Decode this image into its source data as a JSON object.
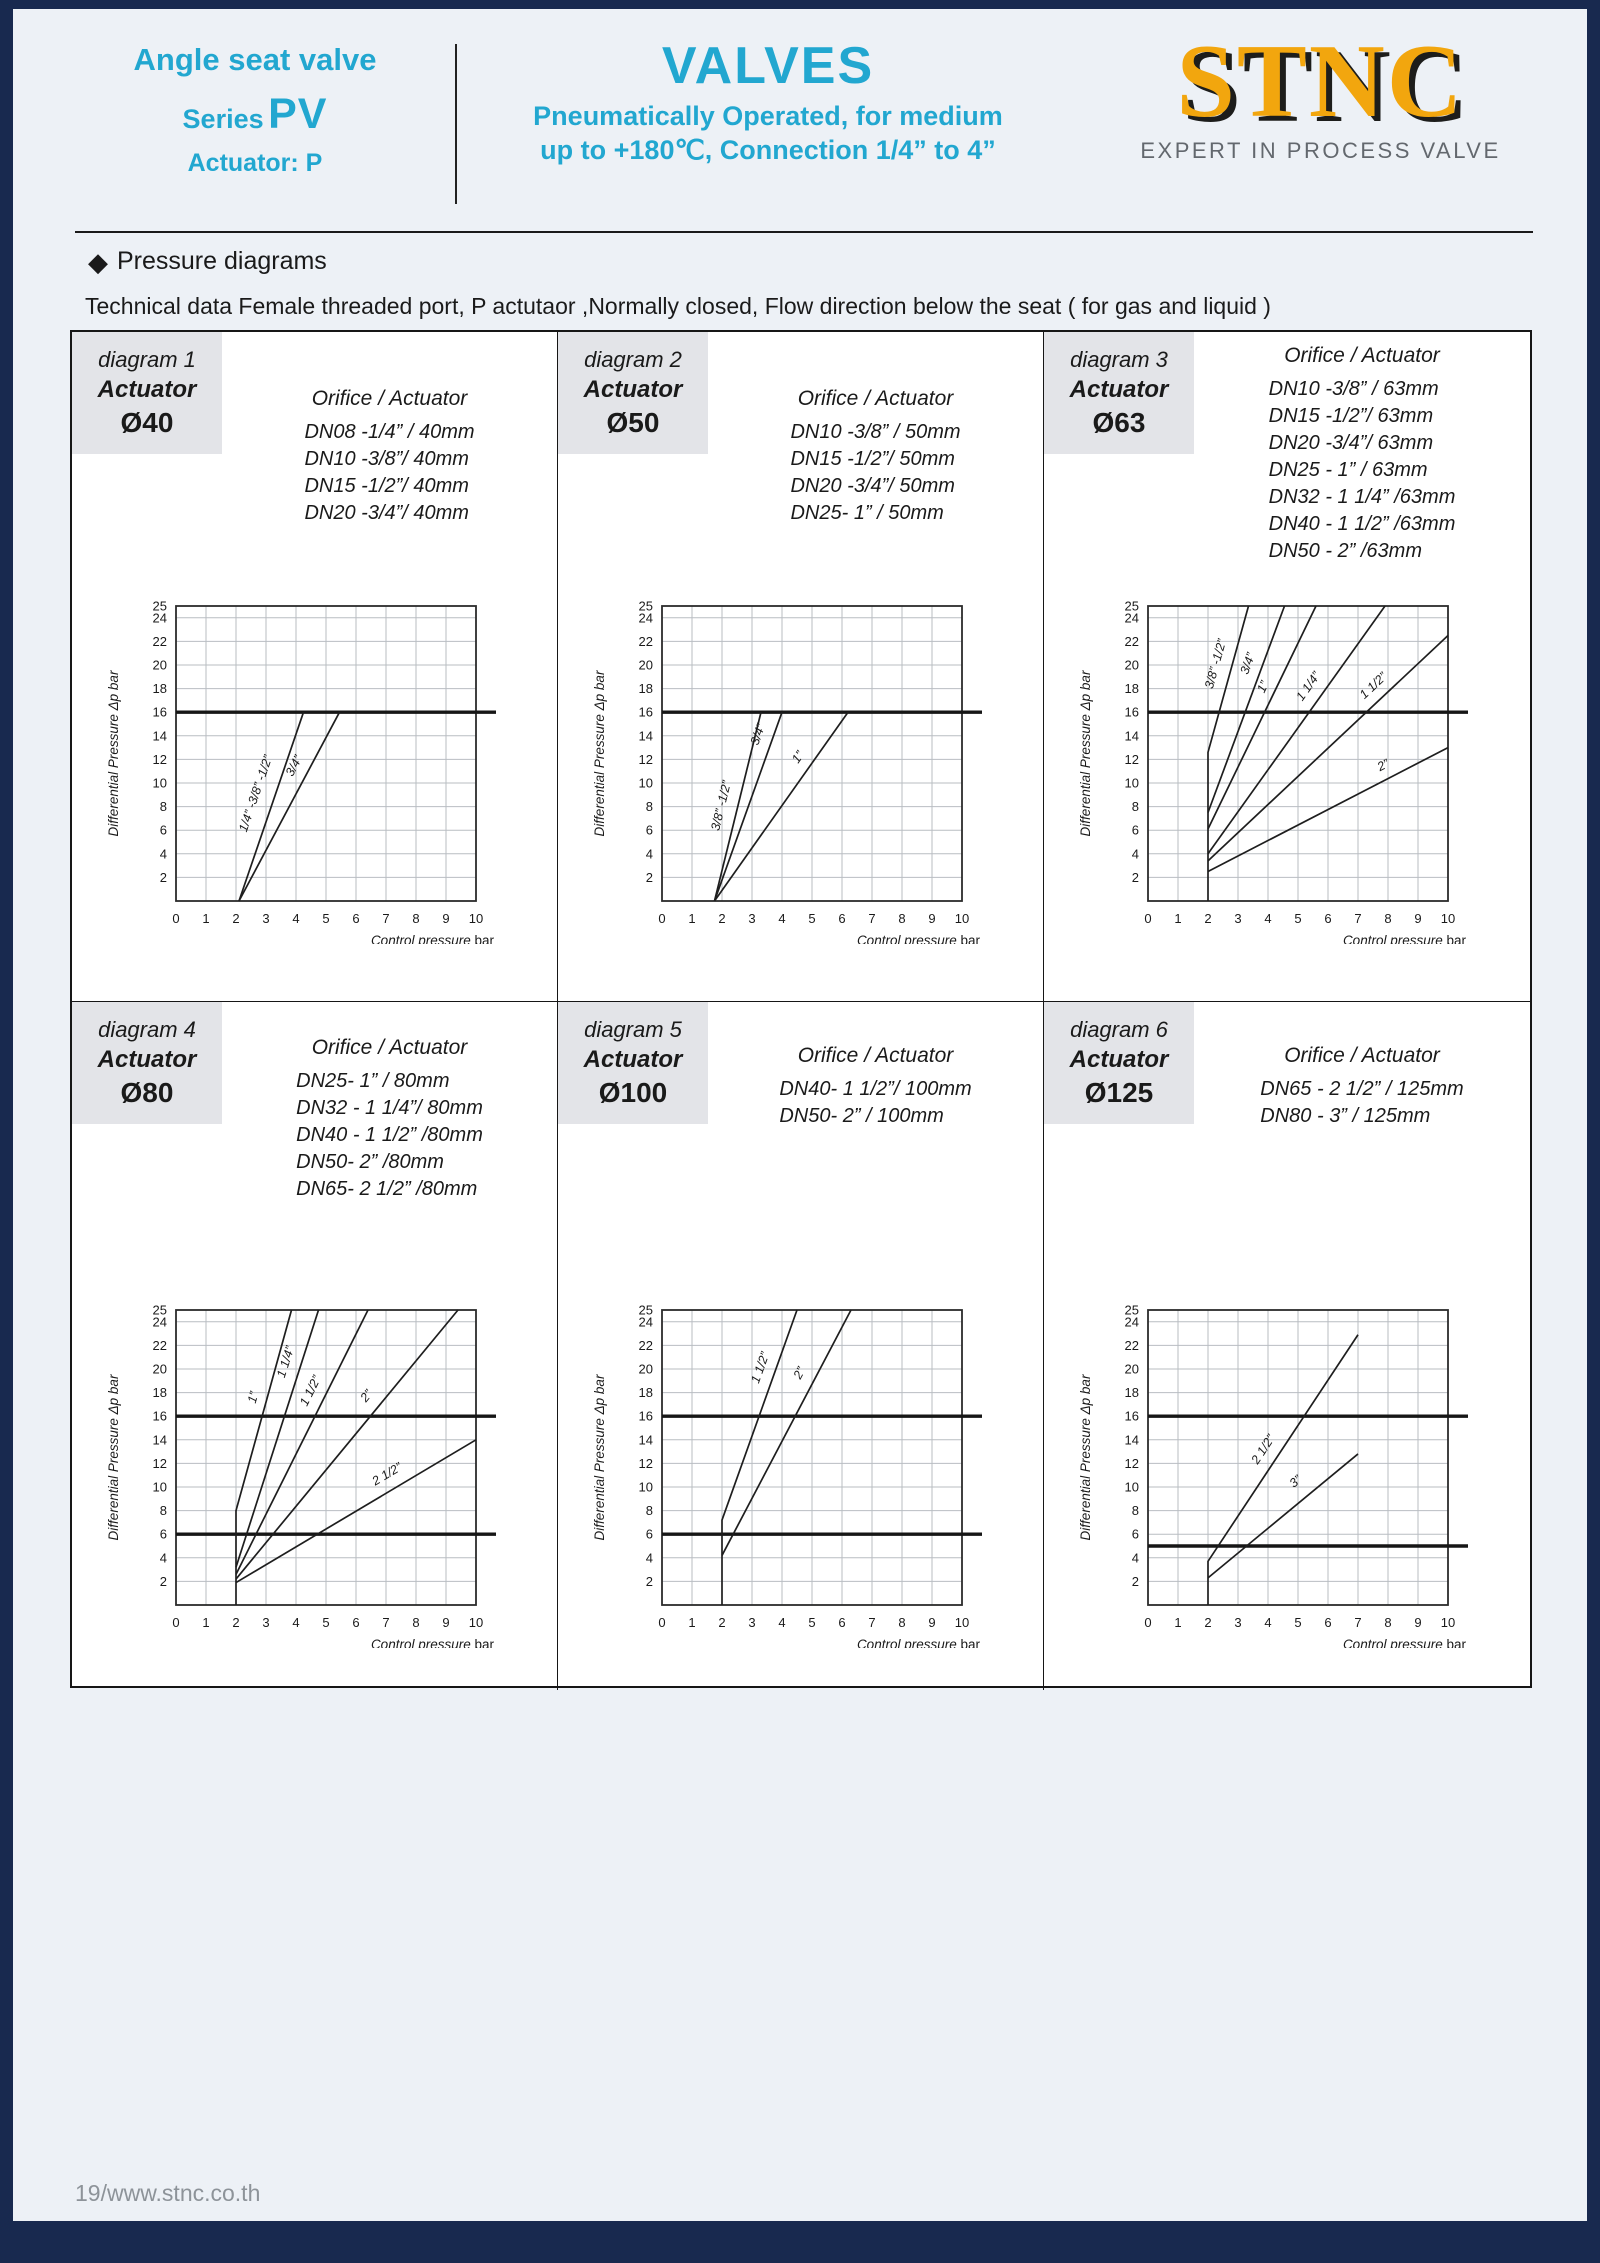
{
  "header": {
    "left": {
      "title": "Angle seat valve",
      "series_label": "Series",
      "series_value": "PV",
      "actuator": "Actuator:  P"
    },
    "center": {
      "title": "VALVES",
      "line1": "Pneumatically Operated, for medium",
      "line2": "up to +180℃, Connection 1/4” to 4”"
    },
    "logo": {
      "text": "STNC",
      "tagline": "EXPERT IN PROCESS VALVE"
    }
  },
  "section_title": "Pressure diagrams",
  "diamond": "◆",
  "tech_line": "Technical data Female threaded port, P actutaor ,Normally closed, Flow direction below the seat ( for gas and liquid )",
  "footer": "19/www.stnc.co.th",
  "colors": {
    "accent_cyan": "#22a7d0",
    "logo_yellow": "#f2a60e",
    "frame_navy": "#18294f",
    "head_box_gray": "#e3e4e8",
    "grid_gray": "#b9bdc2"
  },
  "chart_data": [
    {
      "type": "line",
      "diagram": "diagram 1",
      "actuator_label": "Actuator",
      "actuator": "Ø40",
      "orifice_header": "Orifice / Actuator",
      "orifices": [
        "DN08 -1/4” / 40mm",
        "DN10 -3/8”/ 40mm",
        "DN15 -1/2”/ 40mm",
        "DN20 -3/4”/ 40mm"
      ],
      "xlabel": "Control pressure",
      "xunit": "bar",
      "ylabel": "Differential Pressure Δp bar",
      "xlim": [
        0,
        10
      ],
      "ylim": [
        0,
        25
      ],
      "xticks": [
        0,
        1,
        2,
        3,
        4,
        5,
        6,
        7,
        8,
        9,
        10
      ],
      "yticks": [
        2,
        4,
        6,
        8,
        10,
        12,
        14,
        16,
        18,
        20,
        22,
        24,
        25
      ],
      "bold_lines": [
        16
      ],
      "series": [
        {
          "name": "1/4” -3/8” -1/2”",
          "points": [
            [
              2.1,
              0
            ],
            [
              4.25,
              16
            ]
          ],
          "label_at": [
            2.78,
            9
          ]
        },
        {
          "name": "3/4”",
          "points": [
            [
              2.1,
              0
            ],
            [
              5.45,
              16
            ]
          ],
          "label_at": [
            4.05,
            11.3
          ]
        }
      ]
    },
    {
      "type": "line",
      "diagram": "diagram 2",
      "actuator_label": "Actuator",
      "actuator": "Ø50",
      "orifice_header": "Orifice / Actuator",
      "orifices": [
        "DN10 -3/8” / 50mm",
        "DN15 -1/2”/ 50mm",
        "DN20 -3/4”/ 50mm",
        "DN25- 1” / 50mm"
      ],
      "xlabel": "Control pressure",
      "xunit": "bar",
      "ylabel": "Differential Pressure Δp bar",
      "xlim": [
        0,
        10
      ],
      "ylim": [
        0,
        25
      ],
      "xticks": [
        0,
        1,
        2,
        3,
        4,
        5,
        6,
        7,
        8,
        9,
        10
      ],
      "yticks": [
        2,
        4,
        6,
        8,
        10,
        12,
        14,
        16,
        18,
        20,
        22,
        24,
        25
      ],
      "bold_lines": [
        16
      ],
      "series": [
        {
          "name": "3/8” -1/2”",
          "points": [
            [
              1.75,
              0
            ],
            [
              3.3,
              16
            ]
          ],
          "label_at": [
            2.1,
            8
          ]
        },
        {
          "name": "3/4”",
          "points": [
            [
              1.75,
              0
            ],
            [
              4.0,
              16
            ]
          ],
          "label_at": [
            3.32,
            14
          ]
        },
        {
          "name": "1”",
          "points": [
            [
              1.75,
              0
            ],
            [
              6.2,
              16
            ]
          ],
          "label_at": [
            4.64,
            12
          ]
        }
      ]
    },
    {
      "type": "line",
      "diagram": "diagram 3",
      "actuator_label": "Actuator",
      "actuator": "Ø63",
      "orifice_header": "Orifice / Actuator",
      "orifices": [
        "DN10 -3/8” / 63mm",
        "DN15 -1/2”/ 63mm",
        "DN20 -3/4”/ 63mm",
        "DN25 - 1” / 63mm",
        "DN32 - 1 1/4” /63mm",
        "DN40 - 1 1/2” /63mm",
        "DN50 - 2”  /63mm"
      ],
      "xlabel": "Control pressure",
      "xunit": "bar",
      "ylabel": "Differential Pressure Δp bar",
      "xlim": [
        0,
        10
      ],
      "ylim": [
        0,
        25
      ],
      "xticks": [
        0,
        1,
        2,
        3,
        4,
        5,
        6,
        7,
        8,
        9,
        10
      ],
      "yticks": [
        2,
        4,
        6,
        8,
        10,
        12,
        14,
        16,
        18,
        20,
        22,
        24,
        25
      ],
      "bold_lines": [
        16
      ],
      "series": [
        {
          "name": "3/8” -1/2”",
          "points": [
            [
              2,
              0
            ],
            [
              2,
              12.6
            ],
            [
              3.35,
              25
            ]
          ],
          "label_at": [
            2.38,
            20
          ]
        },
        {
          "name": "3/4”",
          "points": [
            [
              2,
              7.5
            ],
            [
              4.55,
              25
            ]
          ],
          "label_at": [
            3.45,
            20
          ]
        },
        {
          "name": "1”",
          "points": [
            [
              2,
              6.1
            ],
            [
              5.6,
              25
            ]
          ],
          "label_at": [
            3.95,
            18
          ]
        },
        {
          "name": "1 1/4”",
          "points": [
            [
              2,
              4
            ],
            [
              7.9,
              25
            ]
          ],
          "label_at": [
            5.45,
            18
          ]
        },
        {
          "name": "1 1/2”",
          "points": [
            [
              2,
              3.4
            ],
            [
              10,
              22.5
            ]
          ],
          "label_at": [
            7.6,
            18
          ]
        },
        {
          "name": "2”",
          "points": [
            [
              2,
              2.5
            ],
            [
              10,
              13
            ]
          ],
          "label_at": [
            7.9,
            11.2
          ]
        }
      ]
    },
    {
      "type": "line",
      "diagram": "diagram 4",
      "actuator_label": "Actuator",
      "actuator": "Ø80",
      "orifice_header": "Orifice / Actuator",
      "orifices": [
        "DN25- 1” / 80mm",
        "DN32 - 1 1/4”/ 80mm",
        "DN40 - 1 1/2” /80mm",
        "DN50- 2”  /80mm",
        "DN65- 2 1/2” /80mm"
      ],
      "xlabel": "Control pressure",
      "xunit": "bar",
      "ylabel": "Differential Pressure Δp bar",
      "xlim": [
        0,
        10
      ],
      "ylim": [
        0,
        25
      ],
      "xticks": [
        0,
        1,
        2,
        3,
        4,
        5,
        6,
        7,
        8,
        9,
        10
      ],
      "yticks": [
        2,
        4,
        6,
        8,
        10,
        12,
        14,
        16,
        18,
        20,
        22,
        24,
        25
      ],
      "bold_lines": [
        16,
        6
      ],
      "series": [
        {
          "name": "1”",
          "points": [
            [
              2,
              0
            ],
            [
              2,
              8
            ],
            [
              3.85,
              25
            ]
          ],
          "label_at": [
            2.7,
            17.5
          ]
        },
        {
          "name": "1 1/4”",
          "points": [
            [
              2,
              3.2
            ],
            [
              4.75,
              25
            ]
          ],
          "label_at": [
            3.78,
            20.5
          ]
        },
        {
          "name": "1 1/2”",
          "points": [
            [
              2,
              2.6
            ],
            [
              6.4,
              25
            ]
          ],
          "label_at": [
            4.6,
            18
          ]
        },
        {
          "name": "2”",
          "points": [
            [
              2,
              2.2
            ],
            [
              9.4,
              25
            ]
          ],
          "label_at": [
            6.45,
            17.5
          ]
        },
        {
          "name": "2 1/2”",
          "points": [
            [
              2,
              1.9
            ],
            [
              10,
              14
            ]
          ],
          "label_at": [
            7.1,
            10.8
          ]
        }
      ]
    },
    {
      "type": "line",
      "diagram": "diagram 5",
      "actuator_label": "Actuator",
      "actuator": "Ø100",
      "orifice_header": "Orifice / Actuator",
      "orifices": [
        "DN40- 1 1/2”/ 100mm",
        "DN50- 2” / 100mm"
      ],
      "xlabel": "Control pressure",
      "xunit": "bar",
      "ylabel": "Differential Pressure Δp bar",
      "xlim": [
        0,
        10
      ],
      "ylim": [
        0,
        25
      ],
      "xticks": [
        0,
        1,
        2,
        3,
        4,
        5,
        6,
        7,
        8,
        9,
        10
      ],
      "yticks": [
        2,
        4,
        6,
        8,
        10,
        12,
        14,
        16,
        18,
        20,
        22,
        24,
        25
      ],
      "bold_lines": [
        16,
        6
      ],
      "series": [
        {
          "name": "1 1/2”",
          "points": [
            [
              2,
              0
            ],
            [
              2,
              7.2
            ],
            [
              4.5,
              25
            ]
          ],
          "label_at": [
            3.4,
            20
          ]
        },
        {
          "name": "2”",
          "points": [
            [
              2,
              4.2
            ],
            [
              6.3,
              25
            ]
          ],
          "label_at": [
            4.7,
            19.5
          ]
        }
      ]
    },
    {
      "type": "line",
      "diagram": "diagram 6",
      "actuator_label": "Actuator",
      "actuator": "Ø125",
      "orifice_header": "Orifice / Actuator",
      "orifices": [
        "DN65 - 2 1/2” / 125mm",
        "DN80 - 3” / 125mm"
      ],
      "xlabel": "Control pressure",
      "xunit": "bar",
      "ylabel": "Differential Pressure Δp bar",
      "xlim": [
        0,
        10
      ],
      "ylim": [
        0,
        25
      ],
      "xticks": [
        0,
        1,
        2,
        3,
        4,
        5,
        6,
        7,
        8,
        9,
        10
      ],
      "yticks": [
        2,
        4,
        6,
        8,
        10,
        12,
        14,
        16,
        18,
        20,
        22,
        24,
        25
      ],
      "bold_lines": [
        16,
        5
      ],
      "series": [
        {
          "name": "2 1/2”",
          "points": [
            [
              2,
              0
            ],
            [
              2,
              3.7
            ],
            [
              7,
              22.9
            ]
          ],
          "label_at": [
            3.95,
            13
          ]
        },
        {
          "name": "3”",
          "points": [
            [
              2,
              2.3
            ],
            [
              7,
              12.8
            ]
          ],
          "label_at": [
            5.0,
            10.2
          ]
        }
      ]
    }
  ]
}
